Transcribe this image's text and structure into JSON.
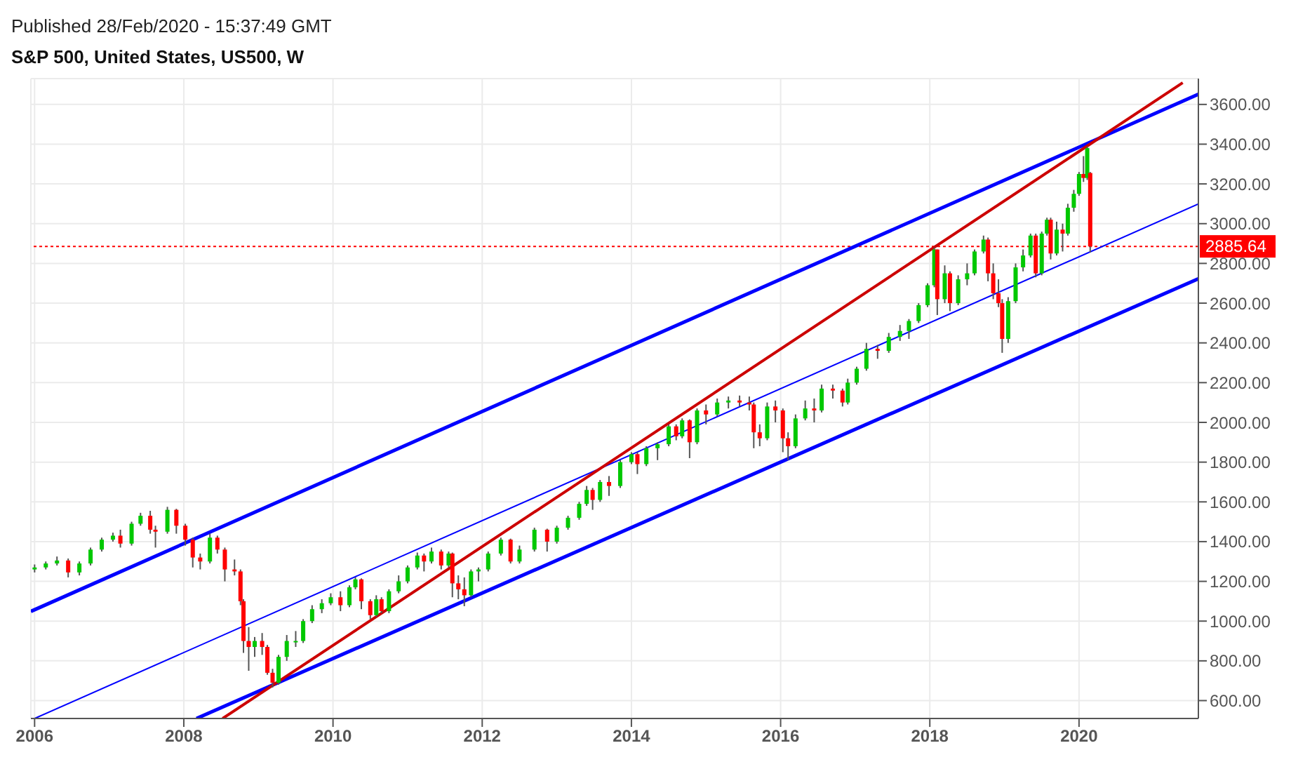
{
  "chart_data": {
    "type": "candlestick",
    "title": "S&P 500, United States, US500, W",
    "annotations": [
      "Published 28/Feb/2020 - 15:37:49 GMT"
    ],
    "x": [
      2006.0,
      2006.15,
      2006.3,
      2006.45,
      2006.6,
      2006.75,
      2006.9,
      2007.05,
      2007.15,
      2007.3,
      2007.42,
      2007.55,
      2007.62,
      2007.78,
      2007.9,
      2008.02,
      2008.12,
      2008.22,
      2008.35,
      2008.45,
      2008.55,
      2008.68,
      2008.76,
      2008.8,
      2008.87,
      2008.95,
      2009.05,
      2009.12,
      2009.19,
      2009.27,
      2009.38,
      2009.5,
      2009.6,
      2009.72,
      2009.85,
      2009.97,
      2010.1,
      2010.22,
      2010.3,
      2010.38,
      2010.5,
      2010.58,
      2010.65,
      2010.75,
      2010.88,
      2011.0,
      2011.13,
      2011.22,
      2011.32,
      2011.45,
      2011.55,
      2011.6,
      2011.68,
      2011.76,
      2011.85,
      2011.95,
      2012.08,
      2012.25,
      2012.38,
      2012.5,
      2012.7,
      2012.87,
      2013.0,
      2013.15,
      2013.3,
      2013.4,
      2013.48,
      2013.58,
      2013.7,
      2013.85,
      2014.0,
      2014.08,
      2014.2,
      2014.35,
      2014.5,
      2014.6,
      2014.68,
      2014.78,
      2014.88,
      2015.0,
      2015.15,
      2015.3,
      2015.45,
      2015.58,
      2015.64,
      2015.72,
      2015.82,
      2015.93,
      2016.03,
      2016.1,
      2016.2,
      2016.33,
      2016.45,
      2016.55,
      2016.7,
      2016.83,
      2016.9,
      2017.02,
      2017.15,
      2017.3,
      2017.45,
      2017.6,
      2017.72,
      2017.85,
      2017.97,
      2018.06,
      2018.1,
      2018.2,
      2018.27,
      2018.38,
      2018.5,
      2018.6,
      2018.72,
      2018.78,
      2018.85,
      2018.92,
      2018.97,
      2019.05,
      2019.15,
      2019.25,
      2019.35,
      2019.42,
      2019.5,
      2019.57,
      2019.62,
      2019.7,
      2019.78,
      2019.85,
      2019.93,
      2020.0,
      2020.06,
      2020.11,
      2020.15
    ],
    "ohlc": [
      [
        1260,
        1285,
        1245,
        1270
      ],
      [
        1270,
        1300,
        1260,
        1290
      ],
      [
        1290,
        1325,
        1280,
        1305
      ],
      [
        1305,
        1315,
        1220,
        1245
      ],
      [
        1245,
        1300,
        1230,
        1290
      ],
      [
        1290,
        1370,
        1280,
        1360
      ],
      [
        1360,
        1420,
        1350,
        1410
      ],
      [
        1410,
        1445,
        1400,
        1430
      ],
      [
        1430,
        1460,
        1370,
        1390
      ],
      [
        1390,
        1500,
        1380,
        1490
      ],
      [
        1490,
        1545,
        1480,
        1530
      ],
      [
        1530,
        1555,
        1440,
        1460
      ],
      [
        1460,
        1480,
        1370,
        1450
      ],
      [
        1450,
        1575,
        1440,
        1560
      ],
      [
        1560,
        1565,
        1440,
        1480
      ],
      [
        1480,
        1490,
        1380,
        1410
      ],
      [
        1410,
        1420,
        1270,
        1320
      ],
      [
        1320,
        1340,
        1260,
        1300
      ],
      [
        1300,
        1440,
        1290,
        1420
      ],
      [
        1420,
        1430,
        1340,
        1360
      ],
      [
        1360,
        1370,
        1200,
        1260
      ],
      [
        1260,
        1310,
        1230,
        1250
      ],
      [
        1250,
        1260,
        1080,
        1100
      ],
      [
        1100,
        1110,
        840,
        900
      ],
      [
        900,
        970,
        750,
        870
      ],
      [
        870,
        920,
        820,
        900
      ],
      [
        900,
        940,
        830,
        870
      ],
      [
        870,
        880,
        730,
        740
      ],
      [
        740,
        760,
        666,
        690
      ],
      [
        690,
        830,
        680,
        820
      ],
      [
        820,
        930,
        800,
        900
      ],
      [
        900,
        950,
        870,
        900
      ],
      [
        900,
        1010,
        890,
        1000
      ],
      [
        1000,
        1080,
        990,
        1060
      ],
      [
        1060,
        1110,
        1040,
        1090
      ],
      [
        1090,
        1140,
        1080,
        1120
      ],
      [
        1120,
        1150,
        1050,
        1080
      ],
      [
        1080,
        1180,
        1070,
        1170
      ],
      [
        1170,
        1220,
        1160,
        1210
      ],
      [
        1210,
        1215,
        1060,
        1100
      ],
      [
        1100,
        1110,
        1010,
        1030
      ],
      [
        1030,
        1130,
        1020,
        1110
      ],
      [
        1110,
        1120,
        1040,
        1050
      ],
      [
        1050,
        1160,
        1040,
        1150
      ],
      [
        1150,
        1230,
        1140,
        1200
      ],
      [
        1200,
        1280,
        1190,
        1270
      ],
      [
        1270,
        1345,
        1260,
        1330
      ],
      [
        1330,
        1340,
        1250,
        1300
      ],
      [
        1300,
        1370,
        1290,
        1350
      ],
      [
        1350,
        1360,
        1260,
        1280
      ],
      [
        1280,
        1350,
        1270,
        1340
      ],
      [
        1340,
        1345,
        1120,
        1190
      ],
      [
        1190,
        1230,
        1110,
        1160
      ],
      [
        1160,
        1220,
        1075,
        1130
      ],
      [
        1130,
        1260,
        1120,
        1250
      ],
      [
        1250,
        1270,
        1200,
        1260
      ],
      [
        1260,
        1350,
        1250,
        1340
      ],
      [
        1340,
        1420,
        1330,
        1410
      ],
      [
        1410,
        1415,
        1290,
        1300
      ],
      [
        1300,
        1380,
        1290,
        1360
      ],
      [
        1360,
        1470,
        1350,
        1460
      ],
      [
        1460,
        1465,
        1350,
        1400
      ],
      [
        1400,
        1480,
        1390,
        1470
      ],
      [
        1470,
        1530,
        1460,
        1520
      ],
      [
        1520,
        1600,
        1510,
        1590
      ],
      [
        1590,
        1680,
        1580,
        1660
      ],
      [
        1660,
        1670,
        1560,
        1610
      ],
      [
        1610,
        1710,
        1600,
        1700
      ],
      [
        1700,
        1730,
        1630,
        1680
      ],
      [
        1680,
        1810,
        1670,
        1800
      ],
      [
        1800,
        1850,
        1790,
        1840
      ],
      [
        1840,
        1850,
        1740,
        1790
      ],
      [
        1790,
        1880,
        1780,
        1870
      ],
      [
        1870,
        1900,
        1810,
        1890
      ],
      [
        1890,
        1990,
        1880,
        1980
      ],
      [
        1980,
        1990,
        1910,
        1930
      ],
      [
        1930,
        2020,
        1920,
        2010
      ],
      [
        2010,
        2015,
        1820,
        1900
      ],
      [
        1900,
        2070,
        1890,
        2060
      ],
      [
        2060,
        2090,
        1990,
        2040
      ],
      [
        2040,
        2120,
        2030,
        2100
      ],
      [
        2100,
        2130,
        2070,
        2110
      ],
      [
        2110,
        2135,
        2080,
        2100
      ],
      [
        2100,
        2130,
        2060,
        2090
      ],
      [
        2090,
        2100,
        1870,
        1950
      ],
      [
        1950,
        1990,
        1880,
        1920
      ],
      [
        1920,
        2100,
        1910,
        2080
      ],
      [
        2080,
        2110,
        2000,
        2060
      ],
      [
        2060,
        2070,
        1850,
        1920
      ],
      [
        1920,
        1950,
        1810,
        1880
      ],
      [
        1880,
        2040,
        1870,
        2020
      ],
      [
        2020,
        2110,
        2010,
        2070
      ],
      [
        2070,
        2120,
        2000,
        2060
      ],
      [
        2060,
        2190,
        2050,
        2170
      ],
      [
        2170,
        2190,
        2120,
        2160
      ],
      [
        2160,
        2170,
        2080,
        2100
      ],
      [
        2100,
        2220,
        2090,
        2200
      ],
      [
        2200,
        2280,
        2190,
        2270
      ],
      [
        2270,
        2400,
        2260,
        2370
      ],
      [
        2370,
        2390,
        2320,
        2360
      ],
      [
        2360,
        2450,
        2350,
        2430
      ],
      [
        2430,
        2490,
        2410,
        2460
      ],
      [
        2460,
        2520,
        2420,
        2510
      ],
      [
        2510,
        2600,
        2500,
        2590
      ],
      [
        2590,
        2700,
        2580,
        2690
      ],
      [
        2690,
        2880,
        2680,
        2870
      ],
      [
        2870,
        2870,
        2540,
        2620
      ],
      [
        2620,
        2790,
        2600,
        2750
      ],
      [
        2750,
        2760,
        2560,
        2600
      ],
      [
        2600,
        2740,
        2590,
        2720
      ],
      [
        2720,
        2800,
        2690,
        2750
      ],
      [
        2750,
        2870,
        2740,
        2860
      ],
      [
        2860,
        2940,
        2850,
        2920
      ],
      [
        2920,
        2930,
        2710,
        2750
      ],
      [
        2750,
        2800,
        2620,
        2650
      ],
      [
        2650,
        2720,
        2580,
        2600
      ],
      [
        2600,
        2620,
        2350,
        2420
      ],
      [
        2420,
        2630,
        2400,
        2610
      ],
      [
        2610,
        2800,
        2600,
        2780
      ],
      [
        2780,
        2870,
        2760,
        2840
      ],
      [
        2840,
        2950,
        2830,
        2940
      ],
      [
        2940,
        2950,
        2730,
        2750
      ],
      [
        2750,
        2960,
        2740,
        2950
      ],
      [
        2950,
        3030,
        2940,
        3020
      ],
      [
        3020,
        3030,
        2820,
        2850
      ],
      [
        2850,
        3010,
        2840,
        2970
      ],
      [
        2970,
        3000,
        2860,
        2950
      ],
      [
        2950,
        3100,
        2940,
        3080
      ],
      [
        3080,
        3170,
        3060,
        3150
      ],
      [
        3150,
        3260,
        3140,
        3250
      ],
      [
        3250,
        3340,
        3210,
        3230
      ],
      [
        3230,
        3390,
        3220,
        3380
      ],
      [
        3255,
        3260,
        2855,
        2885.64
      ]
    ],
    "series": [
      {
        "type": "line",
        "color": "#0000ff",
        "x": [
          2005.95,
          2021.6
        ],
        "values": [
          1049,
          3651
        ]
      },
      {
        "type": "line",
        "color": "#0000ff",
        "x": [
          2008.17,
          2021.6
        ],
        "values": [
          510,
          2723
        ]
      },
      {
        "type": "line",
        "color": "#0000ff",
        "x": [
          2006.0,
          2021.6
        ],
        "values": [
          510,
          3099
        ]
      },
      {
        "type": "line",
        "color": "#cc0000",
        "x": [
          2008.52,
          2021.39
        ],
        "values": [
          510,
          3709
        ]
      }
    ],
    "ref_lines": [
      {
        "axis": "y",
        "value": 2885.64,
        "label": "2885.64",
        "color": "#ff0000",
        "line_style": "dotted"
      }
    ],
    "xlim": [
      2005.95,
      2021.6
    ],
    "xticks": [
      2006,
      2008,
      2010,
      2012,
      2014,
      2016,
      2018,
      2020
    ],
    "ylim": [
      510,
      3730
    ],
    "yticks": [
      {
        "value": 600,
        "label": "600.00"
      },
      {
        "value": 800,
        "label": "800.00"
      },
      {
        "value": 1000,
        "label": "1000.00"
      },
      {
        "value": 1200,
        "label": "1200.00"
      },
      {
        "value": 1400,
        "label": "1400.00"
      },
      {
        "value": 1600,
        "label": "1600.00"
      },
      {
        "value": 1800,
        "label": "1800.00"
      },
      {
        "value": 2000,
        "label": "2000.00"
      },
      {
        "value": 2200,
        "label": "2200.00"
      },
      {
        "value": 2400,
        "label": "2400.00"
      },
      {
        "value": 2600,
        "label": "2600.00"
      },
      {
        "value": 2800,
        "label": "2800.00"
      },
      {
        "value": 3000,
        "label": "3000.00"
      },
      {
        "value": 3200,
        "label": "3200.00"
      },
      {
        "value": 3400,
        "label": "3400.00"
      },
      {
        "value": 3600,
        "label": "3600.00"
      }
    ],
    "grid": true
  }
}
